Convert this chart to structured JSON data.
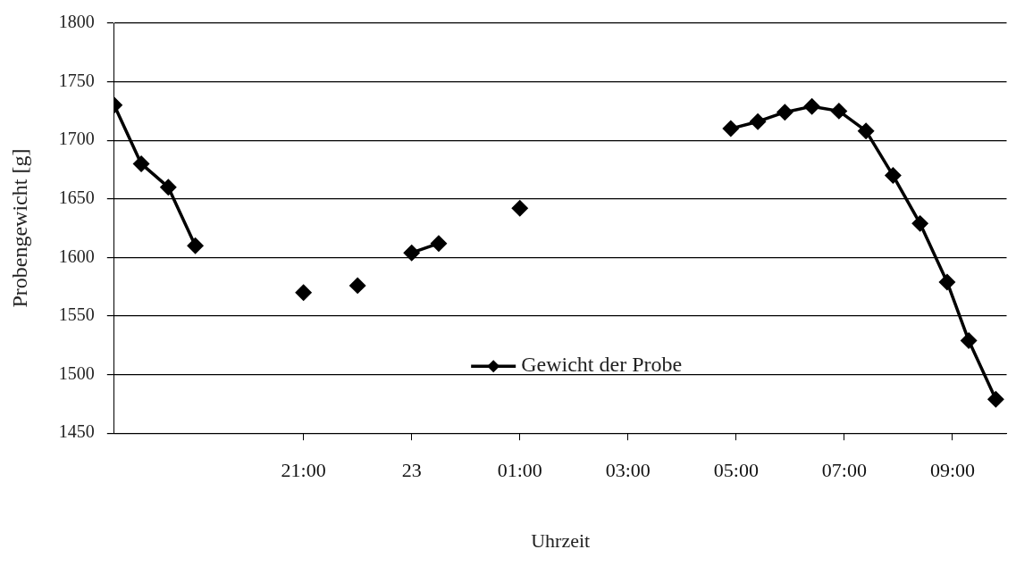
{
  "chart_data": {
    "type": "line",
    "xlabel": "Uhrzeit",
    "ylabel": "Probengewicht [g]",
    "x": [
      "--01-01T17:30",
      "--01-01T18:00",
      "--01-01T18:30",
      "--01-01T19:00",
      "--01-01T20:00",
      "--01-01T21:00",
      "--01-01T21:30",
      "--01-01T22:00",
      "--01-01T22:30",
      "--01-01T23:00",
      "--01-01T23:30",
      "--01-02T00:00",
      "--01-02T01:00",
      "--01-02T03:00",
      "--01-02T04:54",
      "--01-02T05:24",
      "--01-02T05:54",
      "--01-02T06:24",
      "--01-02T06:54",
      "--01-02T07:24",
      "--01-02T07:54",
      "--01-02T08:24",
      "--01-02T08:54",
      "--01-02T09:18",
      "--01-02T09:48"
    ],
    "series": [
      {
        "name": "Gewicht der Probe",
        "color": "#000000",
        "values": [
          1730,
          1680,
          1660,
          1610,
          null,
          1570,
          null,
          1576,
          null,
          1604,
          1612,
          null,
          1642,
          null,
          1710,
          1716,
          1724,
          1729,
          1725,
          1708,
          1670,
          1629,
          1579,
          1529,
          1479
        ]
      }
    ],
    "xlim": [
      "--01-01T17:30",
      "--01-02T10:00"
    ],
    "xticks": [
      {
        "value": "--01-01T21:00",
        "label": "21:00"
      },
      {
        "value": "--01-01T23:00",
        "label": "23"
      },
      {
        "value": "--01-02T01:00",
        "label": "01:00"
      },
      {
        "value": "--01-02T03:00",
        "label": "03:00"
      },
      {
        "value": "--01-02T05:00",
        "label": "05:00"
      },
      {
        "value": "--01-02T07:00",
        "label": "07:00"
      },
      {
        "value": "--01-02T09:00",
        "label": "09:00"
      }
    ],
    "ylim": [
      1450,
      1800
    ],
    "yticks": [
      1450,
      1500,
      1550,
      1600,
      1650,
      1700,
      1750,
      1800
    ],
    "grid": "y",
    "legend": "bottom",
    "marker": "diamond",
    "line_style": "solid"
  }
}
